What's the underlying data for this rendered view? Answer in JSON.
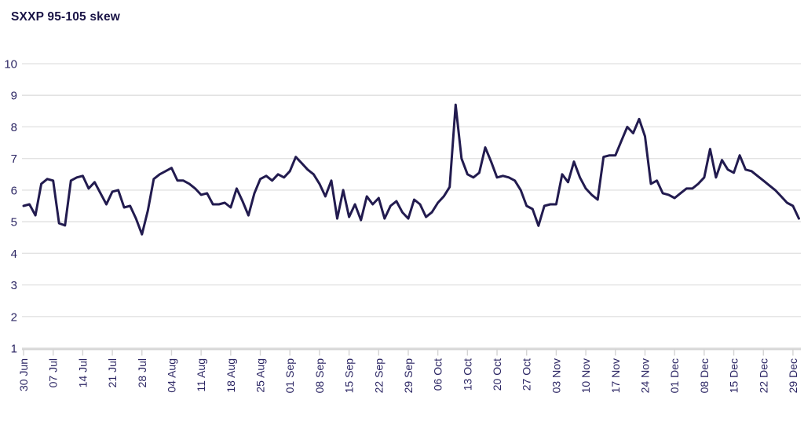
{
  "title": "SXXP 95-105 skew",
  "chart_data": {
    "type": "line",
    "title": "SXXP 95-105 skew",
    "series_name": "SXXP 95-105 skew",
    "ylim": [
      1,
      10
    ],
    "y_ticks": [
      1,
      2,
      3,
      4,
      5,
      6,
      7,
      8,
      9,
      10
    ],
    "grid": "horizontal",
    "legend_position": "none",
    "x_tick_labels": [
      "30 Jun",
      "07 Jul",
      "14 Jul",
      "21 Jul",
      "28 Jul",
      "04 Aug",
      "11 Aug",
      "18 Aug",
      "25 Aug",
      "01 Sep",
      "08 Sep",
      "15 Sep",
      "22 Sep",
      "29 Sep",
      "06 Oct",
      "13 Oct",
      "20 Oct",
      "27 Oct",
      "03 Nov",
      "10 Nov",
      "17 Nov",
      "24 Nov",
      "01 Dec",
      "08 Dec",
      "15 Dec",
      "22 Dec",
      "29 Dec"
    ],
    "x": [
      "30 Jun",
      "01 Jul",
      "02 Jul",
      "03 Jul",
      "04 Jul",
      "07 Jul",
      "08 Jul",
      "09 Jul",
      "10 Jul",
      "11 Jul",
      "14 Jul",
      "15 Jul",
      "16 Jul",
      "17 Jul",
      "18 Jul",
      "21 Jul",
      "22 Jul",
      "23 Jul",
      "24 Jul",
      "25 Jul",
      "28 Jul",
      "29 Jul",
      "30 Jul",
      "31 Jul",
      "01 Aug",
      "04 Aug",
      "05 Aug",
      "06 Aug",
      "07 Aug",
      "08 Aug",
      "11 Aug",
      "12 Aug",
      "13 Aug",
      "14 Aug",
      "15 Aug",
      "18 Aug",
      "19 Aug",
      "20 Aug",
      "21 Aug",
      "22 Aug",
      "25 Aug",
      "26 Aug",
      "27 Aug",
      "28 Aug",
      "29 Aug",
      "01 Sep",
      "02 Sep",
      "03 Sep",
      "04 Sep",
      "05 Sep",
      "08 Sep",
      "09 Sep",
      "10 Sep",
      "11 Sep",
      "12 Sep",
      "15 Sep",
      "16 Sep",
      "17 Sep",
      "18 Sep",
      "19 Sep",
      "22 Sep",
      "23 Sep",
      "24 Sep",
      "25 Sep",
      "26 Sep",
      "29 Sep",
      "30 Sep",
      "01 Oct",
      "02 Oct",
      "03 Oct",
      "06 Oct",
      "07 Oct",
      "08 Oct",
      "09 Oct",
      "10 Oct",
      "13 Oct",
      "14 Oct",
      "15 Oct",
      "16 Oct",
      "17 Oct",
      "20 Oct",
      "21 Oct",
      "22 Oct",
      "23 Oct",
      "24 Oct",
      "27 Oct",
      "28 Oct",
      "29 Oct",
      "30 Oct",
      "31 Oct",
      "03 Nov",
      "04 Nov",
      "05 Nov",
      "06 Nov",
      "07 Nov",
      "10 Nov",
      "11 Nov",
      "12 Nov",
      "13 Nov",
      "14 Nov",
      "17 Nov",
      "18 Nov",
      "19 Nov",
      "20 Nov",
      "21 Nov",
      "24 Nov",
      "25 Nov",
      "26 Nov",
      "27 Nov",
      "28 Nov",
      "01 Dec",
      "02 Dec",
      "03 Dec",
      "04 Dec",
      "05 Dec",
      "08 Dec",
      "09 Dec",
      "10 Dec",
      "11 Dec",
      "12 Dec",
      "15 Dec",
      "16 Dec",
      "17 Dec",
      "18 Dec",
      "19 Dec",
      "22 Dec",
      "23 Dec",
      "24 Dec",
      "25 Dec",
      "26 Dec",
      "29 Dec",
      "30 Dec"
    ],
    "values": [
      5.5,
      5.55,
      5.2,
      6.2,
      6.35,
      6.3,
      4.95,
      4.88,
      6.3,
      6.4,
      6.45,
      6.05,
      6.25,
      5.9,
      5.55,
      5.95,
      6.0,
      5.45,
      5.5,
      5.1,
      4.6,
      5.35,
      6.35,
      6.5,
      6.6,
      6.7,
      6.3,
      6.3,
      6.2,
      6.05,
      5.85,
      5.9,
      5.55,
      5.55,
      5.6,
      5.45,
      6.05,
      5.65,
      5.2,
      5.9,
      6.35,
      6.45,
      6.3,
      6.5,
      6.4,
      6.6,
      7.05,
      6.85,
      6.65,
      6.5,
      6.2,
      5.8,
      6.3,
      5.1,
      6.0,
      5.15,
      5.55,
      5.05,
      5.8,
      5.55,
      5.75,
      5.1,
      5.5,
      5.65,
      5.3,
      5.1,
      5.7,
      5.55,
      5.15,
      5.3,
      5.6,
      5.8,
      6.1,
      8.7,
      7.0,
      6.5,
      6.4,
      6.55,
      7.35,
      6.9,
      6.4,
      6.45,
      6.4,
      6.3,
      6.0,
      5.5,
      5.4,
      4.87,
      5.5,
      5.55,
      5.55,
      6.5,
      6.25,
      6.9,
      6.4,
      6.05,
      5.85,
      5.7,
      7.05,
      7.1,
      7.1,
      7.55,
      8.0,
      7.8,
      8.25,
      7.7,
      6.2,
      6.3,
      5.9,
      5.85,
      5.75,
      5.9,
      6.05,
      6.05,
      6.2,
      6.4,
      7.3,
      6.4,
      6.95,
      6.65,
      6.55,
      7.1,
      6.65,
      6.6,
      6.45,
      6.3,
      6.15,
      6.0,
      5.8,
      5.6,
      5.5,
      5.1
    ],
    "colors": {
      "line": "#221b4f",
      "title": "#1a1446",
      "axis_labels": "#2b2563",
      "gridline": "#e2e2e2",
      "axis_line": "#d4d4d4",
      "background": "#ffffff"
    }
  }
}
